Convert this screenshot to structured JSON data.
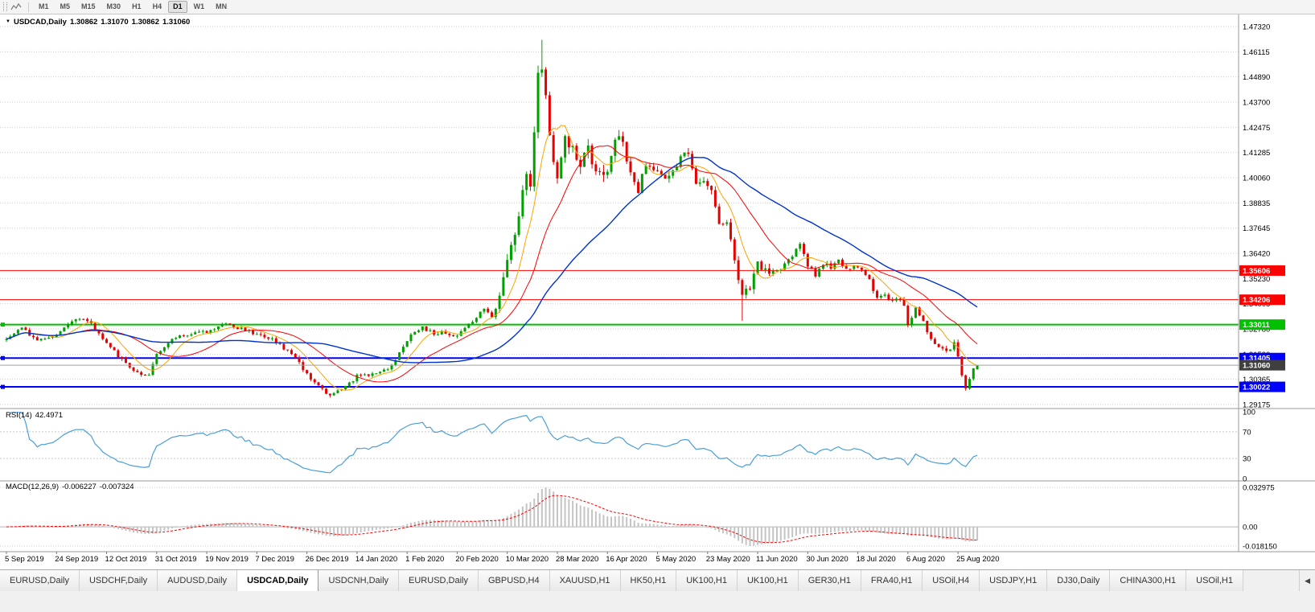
{
  "toolbar": {
    "timeframes": [
      "M1",
      "M5",
      "M15",
      "M30",
      "H1",
      "H4",
      "D1",
      "W1",
      "MN"
    ],
    "active_timeframe": "D1"
  },
  "symbol_header": {
    "collapse_icon": "▼",
    "symbol": "USDCAD,Daily",
    "open": "1.30862",
    "high": "1.31070",
    "low": "1.30862",
    "close": "1.31060"
  },
  "price_axis": {
    "ticks": [
      "1.47320",
      "1.46115",
      "1.44890",
      "1.43700",
      "1.42475",
      "1.41285",
      "1.40060",
      "1.38835",
      "1.37645",
      "1.36420",
      "1.35230",
      "1.34005",
      "1.32780",
      "1.31590",
      "1.30365",
      "1.29175"
    ]
  },
  "levels": [
    {
      "label": "1.35606",
      "price": 1.35606,
      "color": "#ff0000",
      "thickness": 1
    },
    {
      "label": "1.34206",
      "price": 1.34206,
      "color": "#ff0000",
      "thickness": 1
    },
    {
      "label": "1.33011",
      "price": 1.33011,
      "color": "#00c000",
      "thickness": 2
    },
    {
      "label": "1.31405",
      "price": 1.31405,
      "color": "#0000ff",
      "thickness": 2
    },
    {
      "label": "1.30022",
      "price": 1.30022,
      "color": "#0000ff",
      "thickness": 2
    }
  ],
  "current_price": {
    "label": "1.31060",
    "price": 1.3106,
    "line_color": "#a0a0a0",
    "badge_bg": "#3f3f3f"
  },
  "rsi": {
    "name": "RSI(14)",
    "value": "42.4971",
    "ticks": [
      "100",
      "70",
      "30",
      "0"
    ],
    "tick_values": [
      100,
      70,
      30,
      0
    ],
    "grid_levels": [
      70,
      30
    ],
    "line_color": "#4a9fd8"
  },
  "macd": {
    "name": "MACD(12,26,9)",
    "value": "-0.006227",
    "signal_value": "-0.007324",
    "ticks": {
      "top": "0.032975",
      "zero": "0.00",
      "bottom": "-0.018150"
    },
    "histogram_color": "#c4c4c4",
    "signal_color": "#ff0000"
  },
  "date_axis": [
    "5 Sep 2019",
    "24 Sep 2019",
    "12 Oct 2019",
    "31 Oct 2019",
    "19 Nov 2019",
    "7 Dec 2019",
    "26 Dec 2019",
    "14 Jan 2020",
    "1 Feb 2020",
    "20 Feb 2020",
    "10 Mar 2020",
    "28 Mar 2020",
    "16 Apr 2020",
    "5 May 2020",
    "23 May 2020",
    "11 Jun 2020",
    "30 Jun 2020",
    "18 Jul 2020",
    "6 Aug 2020",
    "25 Aug 2020"
  ],
  "tabs": {
    "items": [
      "EURUSD,Daily",
      "USDCHF,Daily",
      "AUDUSD,Daily",
      "USDCAD,Daily",
      "USDCNH,Daily",
      "EURUSD,Daily",
      "GBPUSD,H4",
      "XAUUSD,H1",
      "HK50,H1",
      "UK100,H1",
      "UK100,H1",
      "GER30,H1",
      "FRA40,H1",
      "USOil,H4",
      "USDJPY,H1",
      "DJ30,Daily",
      "CHINA300,H1",
      "USOil,H1"
    ],
    "active_index": 3,
    "scroll_icon": "◀"
  },
  "chart_data": {
    "type": "candlestick",
    "title": "USDCAD,Daily",
    "y_range": [
      1.29175,
      1.4732
    ],
    "count": 253,
    "candle_up_color": "#00a000",
    "candle_down_color": "#e60000",
    "anchors": [
      [
        0,
        1.323
      ],
      [
        4,
        1.328
      ],
      [
        8,
        1.323
      ],
      [
        13,
        1.3255
      ],
      [
        18,
        1.3335
      ],
      [
        22,
        1.3305
      ],
      [
        26,
        1.321
      ],
      [
        30,
        1.3135
      ],
      [
        34,
        1.307
      ],
      [
        37,
        1.306
      ],
      [
        39,
        1.3155
      ],
      [
        43,
        1.3235
      ],
      [
        47,
        1.325
      ],
      [
        52,
        1.327
      ],
      [
        56,
        1.3305
      ],
      [
        60,
        1.3285
      ],
      [
        65,
        1.3255
      ],
      [
        69,
        1.323
      ],
      [
        73,
        1.317
      ],
      [
        76,
        1.312
      ],
      [
        78,
        1.306
      ],
      [
        82,
        1.299
      ],
      [
        84,
        1.2965
      ],
      [
        87,
        1.2985
      ],
      [
        91,
        1.3055
      ],
      [
        95,
        1.3065
      ],
      [
        99,
        1.309
      ],
      [
        102,
        1.316
      ],
      [
        104,
        1.323
      ],
      [
        108,
        1.329
      ],
      [
        111,
        1.3255
      ],
      [
        114,
        1.3265
      ],
      [
        117,
        1.3245
      ],
      [
        120,
        1.33
      ],
      [
        124,
        1.338
      ],
      [
        126,
        1.3345
      ],
      [
        128,
        1.342
      ],
      [
        130,
        1.361
      ],
      [
        132,
        1.3745
      ],
      [
        134,
        1.3935
      ],
      [
        135,
        1.4015
      ],
      [
        136,
        1.3985
      ],
      [
        137,
        1.425
      ],
      [
        138,
        1.449
      ],
      [
        139,
        1.4515
      ],
      [
        140,
        1.442
      ],
      [
        141,
        1.422
      ],
      [
        143,
        1.3995
      ],
      [
        145,
        1.419
      ],
      [
        147,
        1.4135
      ],
      [
        149,
        1.408
      ],
      [
        151,
        1.416
      ],
      [
        153,
        1.4015
      ],
      [
        156,
        1.4045
      ],
      [
        158,
        1.4175
      ],
      [
        159,
        1.421
      ],
      [
        161,
        1.4095
      ],
      [
        163,
        1.4
      ],
      [
        164,
        1.3945
      ],
      [
        166,
        1.4075
      ],
      [
        169,
        1.4035
      ],
      [
        171,
        1.3985
      ],
      [
        173,
        1.4035
      ],
      [
        175,
        1.4105
      ],
      [
        177,
        1.4115
      ],
      [
        179,
        1.3975
      ],
      [
        181,
        1.3985
      ],
      [
        183,
        1.3935
      ],
      [
        185,
        1.3785
      ],
      [
        187,
        1.3775
      ],
      [
        189,
        1.3625
      ],
      [
        191,
        1.343
      ],
      [
        193,
        1.3485
      ],
      [
        195,
        1.359
      ],
      [
        197,
        1.3565
      ],
      [
        199,
        1.3545
      ],
      [
        201,
        1.356
      ],
      [
        203,
        1.3615
      ],
      [
        205,
        1.3655
      ],
      [
        206,
        1.3688
      ],
      [
        208,
        1.358
      ],
      [
        210,
        1.354
      ],
      [
        212,
        1.3595
      ],
      [
        214,
        1.3575
      ],
      [
        216,
        1.3605
      ],
      [
        218,
        1.356
      ],
      [
        220,
        1.3585
      ],
      [
        222,
        1.3555
      ],
      [
        224,
        1.351
      ],
      [
        226,
        1.3425
      ],
      [
        228,
        1.344
      ],
      [
        230,
        1.3415
      ],
      [
        232,
        1.3425
      ],
      [
        233,
        1.339
      ],
      [
        234,
        1.3295
      ],
      [
        236,
        1.3385
      ],
      [
        238,
        1.3315
      ],
      [
        240,
        1.3235
      ],
      [
        242,
        1.3195
      ],
      [
        244,
        1.3165
      ],
      [
        246,
        1.3215
      ],
      [
        247,
        1.3155
      ],
      [
        248,
        1.3065
      ],
      [
        249,
        1.3
      ],
      [
        250,
        1.304
      ],
      [
        251,
        1.309
      ],
      [
        252,
        1.3106
      ]
    ],
    "volatility": [
      [
        0,
        127,
        0.0016
      ],
      [
        128,
        160,
        0.005
      ],
      [
        161,
        199,
        0.0032
      ],
      [
        200,
        252,
        0.0019
      ]
    ],
    "extremes": [
      {
        "i": 139,
        "high": 1.4668
      },
      {
        "i": 84,
        "low": 1.2951
      },
      {
        "i": 191,
        "low": 1.332
      },
      {
        "i": 249,
        "low": 1.2988
      }
    ],
    "last_candle": {
      "o": 1.30862,
      "h": 1.3107,
      "l": 1.30862,
      "c": 1.3106
    },
    "moving_averages": [
      {
        "period": 8,
        "color": "#ffa200"
      },
      {
        "period": 20,
        "color": "#ff0000"
      },
      {
        "period": 45,
        "color": "#0033cc"
      }
    ]
  }
}
